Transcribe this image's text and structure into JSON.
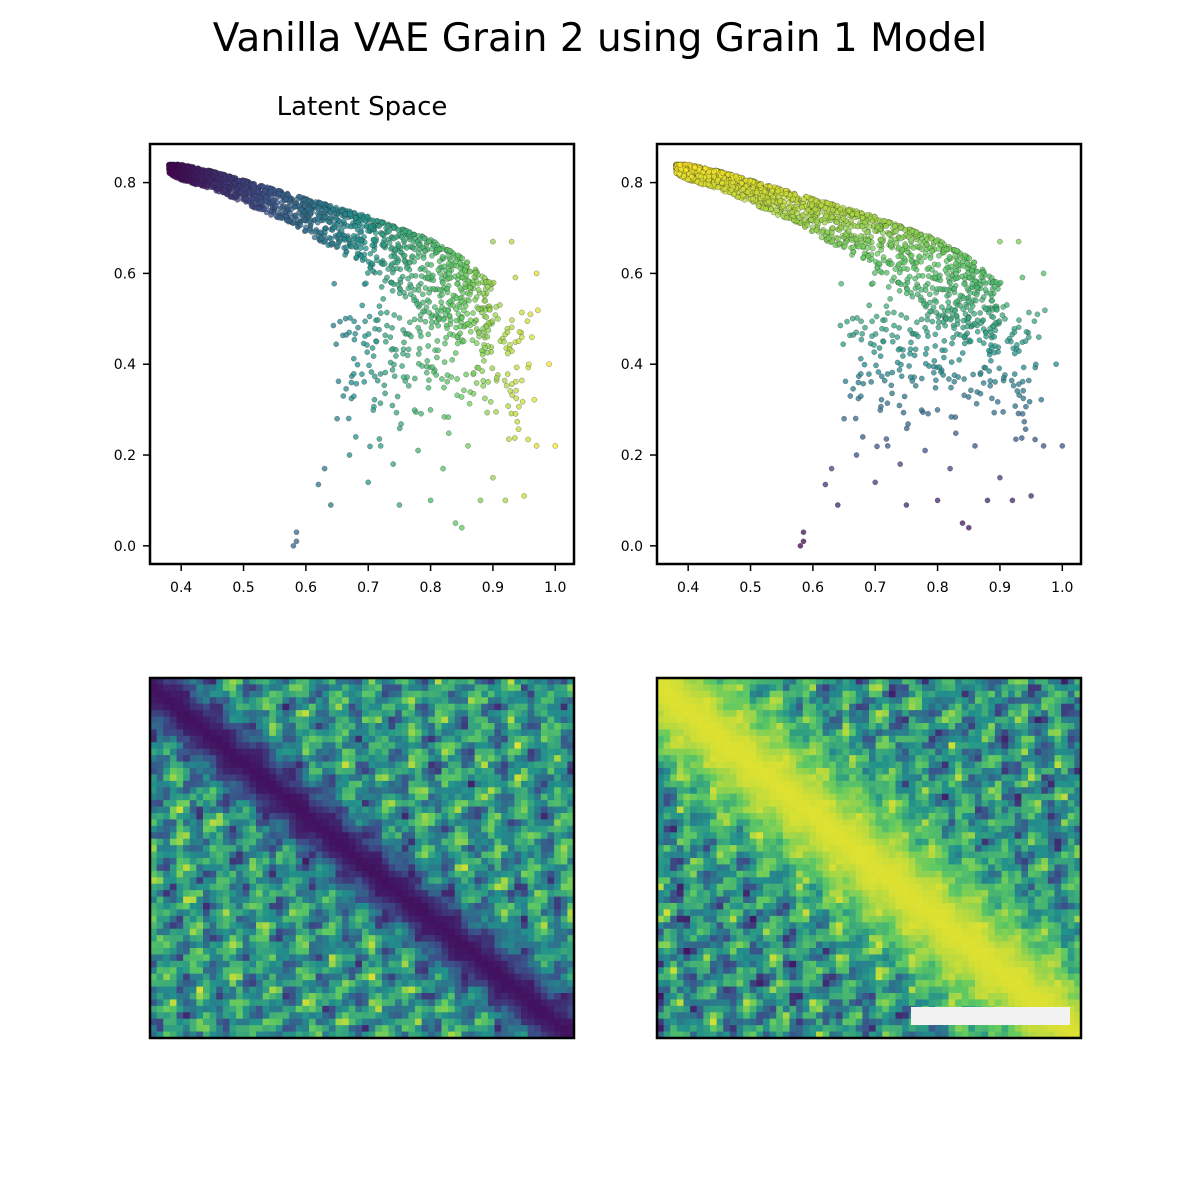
{
  "figure": {
    "title": "Vanilla VAE Grain 2 using Grain 1 Model"
  },
  "colors": {
    "colormap": "viridis",
    "viridis_stops": [
      "#440154",
      "#3b528b",
      "#21918c",
      "#5ec962",
      "#fde725"
    ],
    "scale_bar": "#f2f2f2",
    "axes_edge": "#000000"
  },
  "chart_data": [
    {
      "type": "scatter",
      "panel": "top-left",
      "title": "Latent Space",
      "xlabel": "",
      "ylabel": "",
      "xlim": [
        0.35,
        1.03
      ],
      "ylim": [
        -0.04,
        0.885
      ],
      "xticks": [
        0.4,
        0.5,
        0.6,
        0.7,
        0.8,
        0.9,
        1.0
      ],
      "xtick_labels": [
        "0.4",
        "0.5",
        "0.6",
        "0.7",
        "0.8",
        "0.9",
        "1.0"
      ],
      "yticks": [
        0.0,
        0.2,
        0.4,
        0.6,
        0.8
      ],
      "ytick_labels": [
        "0.0",
        "0.2",
        "0.4",
        "0.6",
        "0.8"
      ],
      "color_by": "latent x (low x = purple, high x = yellow)",
      "envelope_x": [
        0.38,
        0.4,
        0.45,
        0.5,
        0.55,
        0.6,
        0.65,
        0.7,
        0.75,
        0.8,
        0.85,
        0.88,
        0.9
      ],
      "envelope_upper": [
        0.84,
        0.84,
        0.825,
        0.805,
        0.785,
        0.765,
        0.745,
        0.725,
        0.7,
        0.675,
        0.635,
        0.6,
        0.575
      ],
      "envelope_lower": [
        0.82,
        0.805,
        0.785,
        0.755,
        0.725,
        0.69,
        0.65,
        0.61,
        0.56,
        0.5,
        0.45,
        0.42,
        0.4
      ],
      "outliers": [
        [
          0.58,
          0.0
        ],
        [
          0.585,
          0.01
        ],
        [
          0.585,
          0.03
        ],
        [
          0.62,
          0.135
        ],
        [
          0.63,
          0.17
        ],
        [
          0.64,
          0.09
        ],
        [
          0.65,
          0.28
        ],
        [
          0.66,
          0.33
        ],
        [
          0.67,
          0.2
        ],
        [
          0.68,
          0.24
        ],
        [
          0.7,
          0.14
        ],
        [
          0.72,
          0.22
        ],
        [
          0.74,
          0.18
        ],
        [
          0.75,
          0.09
        ],
        [
          0.78,
          0.21
        ],
        [
          0.8,
          0.1
        ],
        [
          0.82,
          0.17
        ],
        [
          0.84,
          0.05
        ],
        [
          0.85,
          0.04
        ],
        [
          0.86,
          0.22
        ],
        [
          0.88,
          0.1
        ],
        [
          0.9,
          0.15
        ],
        [
          0.92,
          0.1
        ],
        [
          0.95,
          0.11
        ],
        [
          0.97,
          0.22
        ],
        [
          1.0,
          0.22
        ],
        [
          0.99,
          0.4
        ],
        [
          0.97,
          0.6
        ],
        [
          0.96,
          0.51
        ],
        [
          0.93,
          0.67
        ],
        [
          0.9,
          0.67
        ]
      ]
    },
    {
      "type": "scatter",
      "panel": "top-right",
      "title": "",
      "xlabel": "",
      "ylabel": "",
      "xlim": [
        0.35,
        1.03
      ],
      "ylim": [
        -0.04,
        0.885
      ],
      "xticks": [
        0.4,
        0.5,
        0.6,
        0.7,
        0.8,
        0.9,
        1.0
      ],
      "xtick_labels": [
        "0.4",
        "0.5",
        "0.6",
        "0.7",
        "0.8",
        "0.9",
        "1.0"
      ],
      "yticks": [
        0.0,
        0.2,
        0.4,
        0.6,
        0.8
      ],
      "ytick_labels": [
        "0.0",
        "0.2",
        "0.4",
        "0.6",
        "0.8"
      ],
      "color_by": "latent y (low y = purple, high y = yellow)",
      "same_points_as": "top-left"
    },
    {
      "type": "heatmap",
      "panel": "bottom-left",
      "colormap": "viridis",
      "description_key": "low values along a diagonal band from top-left to bottom-right",
      "band": "low",
      "ticks": "none"
    },
    {
      "type": "heatmap",
      "panel": "bottom-right",
      "colormap": "viridis",
      "band": "high",
      "ticks": "none",
      "scale_bar": true
    }
  ]
}
